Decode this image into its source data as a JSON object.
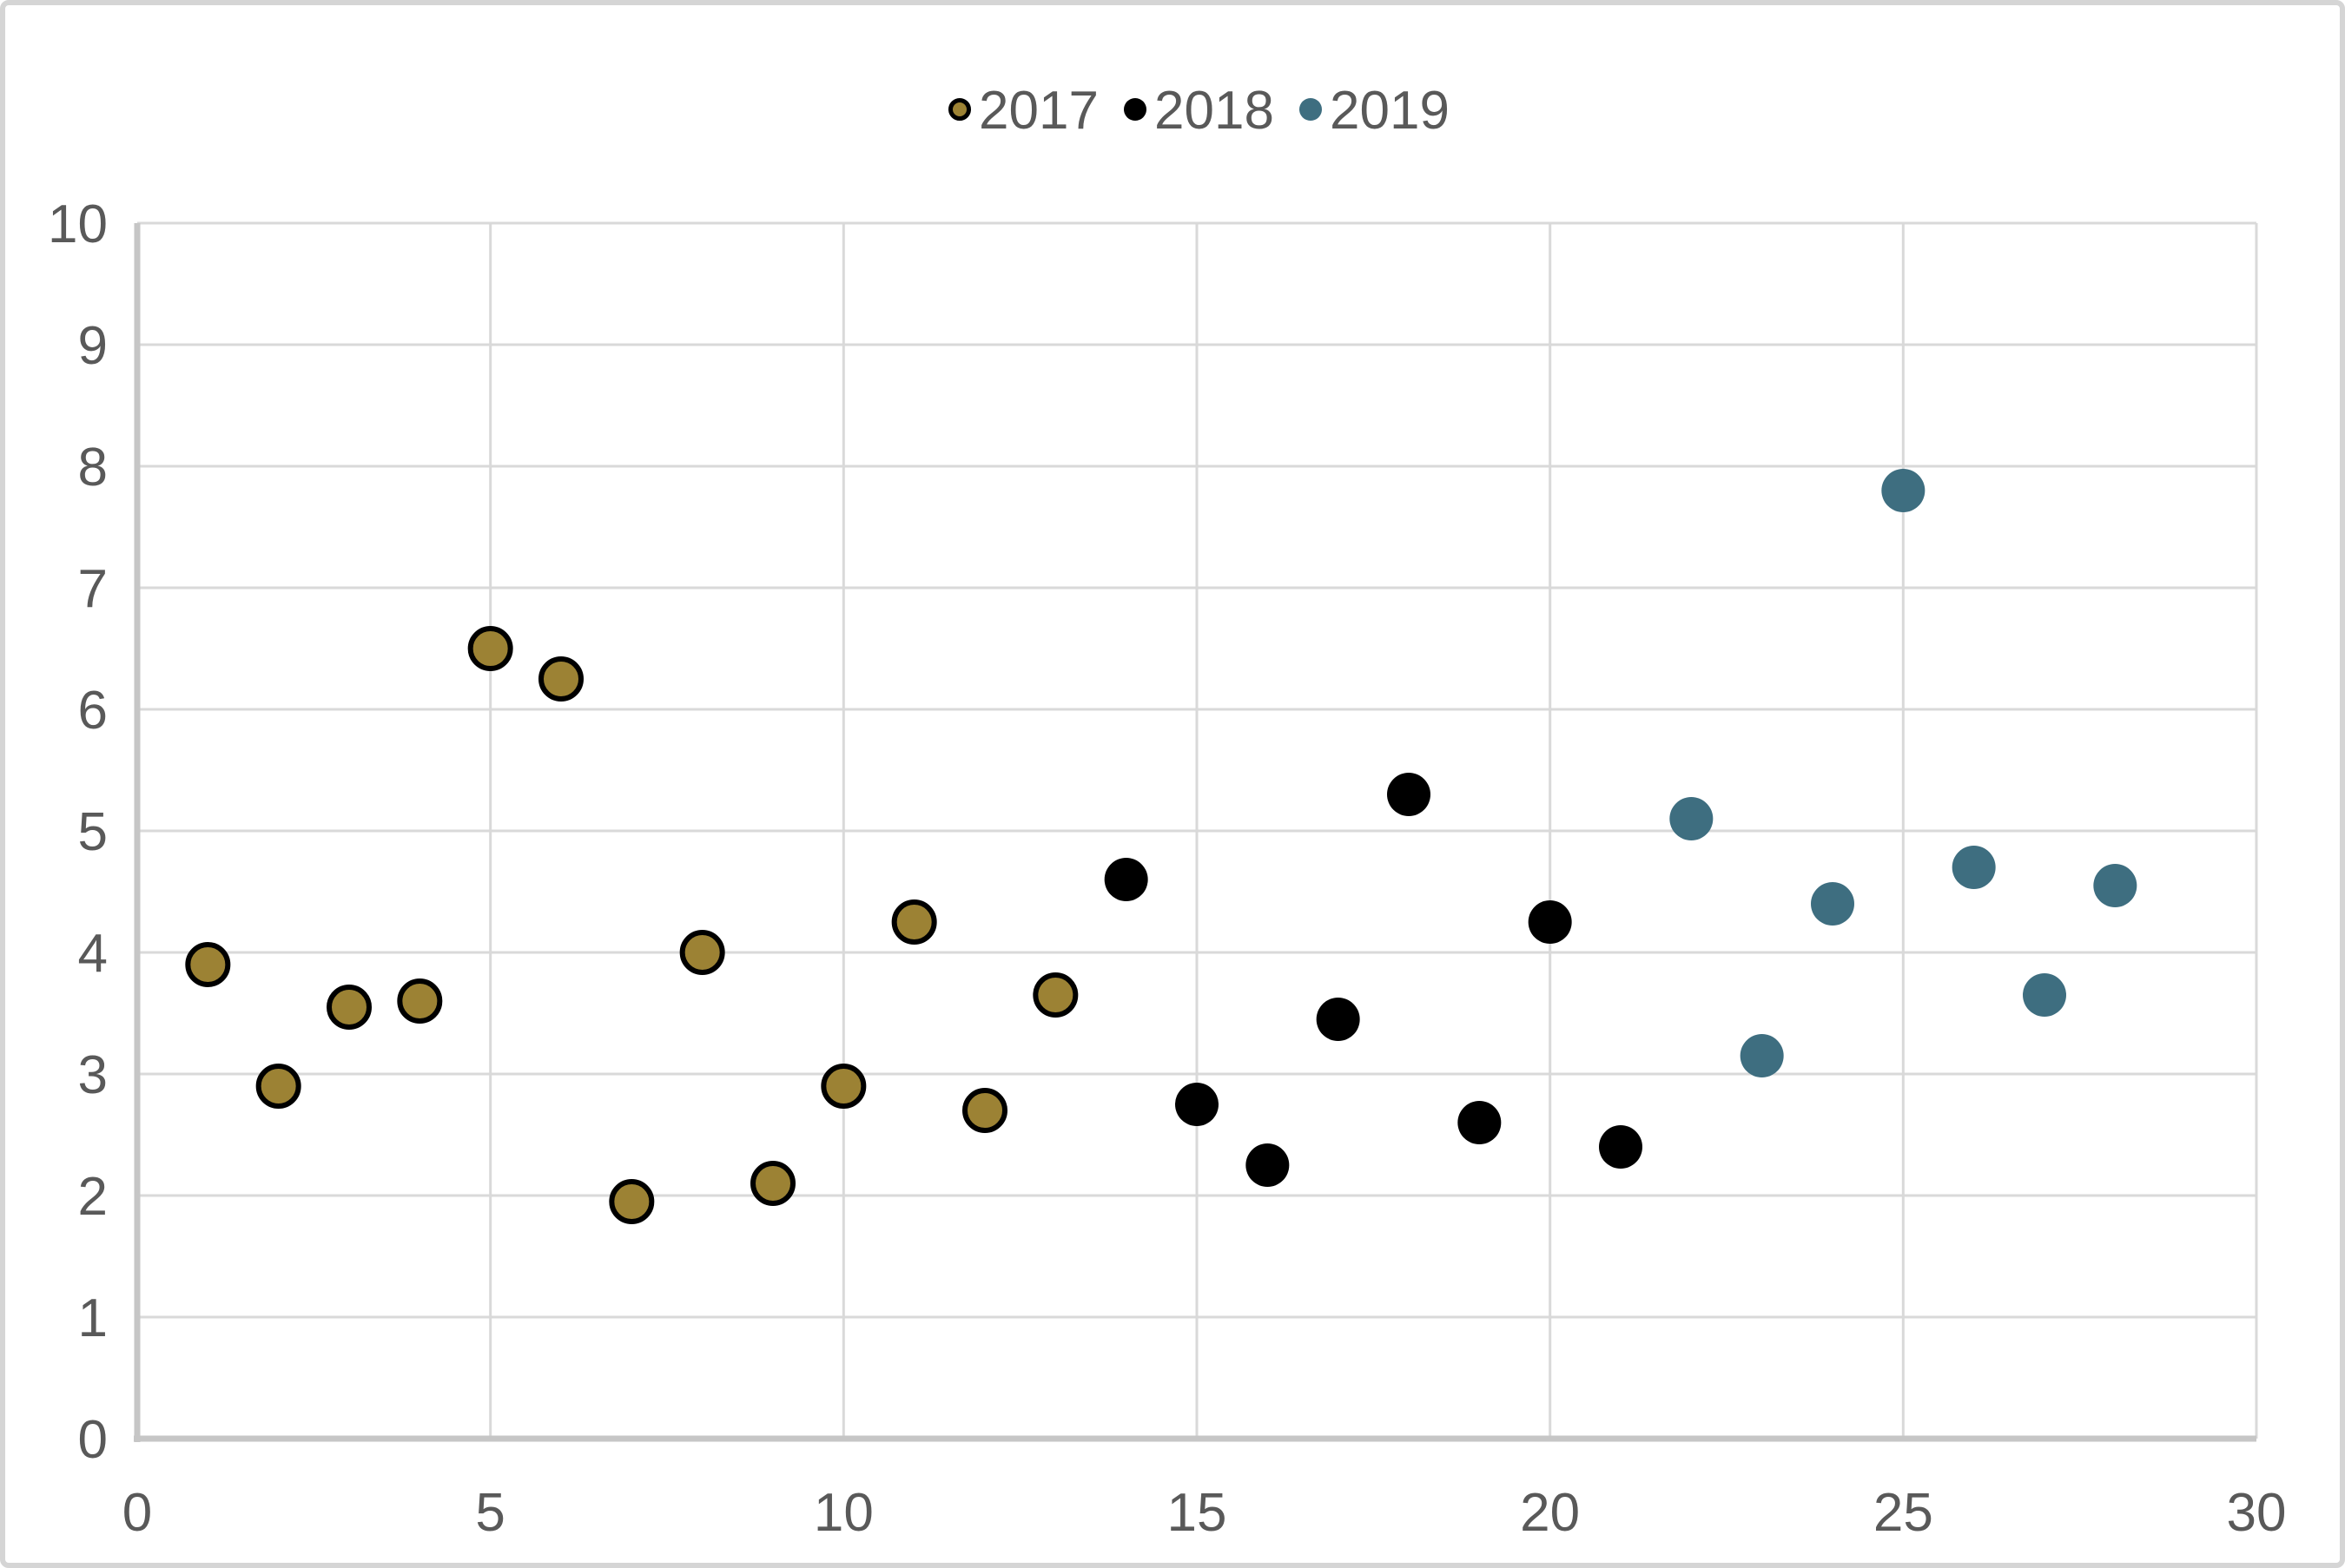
{
  "chart_data": {
    "type": "scatter",
    "title": "",
    "grid": true,
    "legend_position": "top-center",
    "x_axis": {
      "min": 0,
      "max": 30,
      "tick_step": 5,
      "tick_labels": [
        "0",
        "5",
        "10",
        "15",
        "20",
        "25",
        "30"
      ]
    },
    "y_axis": {
      "min": 0,
      "max": 10,
      "tick_step": 1,
      "tick_labels": [
        "0",
        "1",
        "2",
        "3",
        "4",
        "5",
        "6",
        "7",
        "8",
        "9",
        "10"
      ]
    },
    "series": [
      {
        "name": "2017",
        "marker_color": "#9C8234",
        "marker_outline": "#000000",
        "points": [
          [
            1,
            3.9
          ],
          [
            2,
            2.9
          ],
          [
            3,
            3.55
          ],
          [
            4,
            3.6
          ],
          [
            5,
            6.5
          ],
          [
            6,
            6.25
          ],
          [
            7,
            1.95
          ],
          [
            8,
            4.0
          ],
          [
            9,
            2.1
          ],
          [
            10,
            2.9
          ],
          [
            11,
            4.25
          ],
          [
            12,
            2.7
          ],
          [
            13,
            3.65
          ]
        ]
      },
      {
        "name": "2018",
        "marker_color": "#000000",
        "marker_outline": null,
        "points": [
          [
            14,
            4.6
          ],
          [
            15,
            2.75
          ],
          [
            16,
            2.25
          ],
          [
            17,
            3.45
          ],
          [
            18,
            5.3
          ],
          [
            19,
            2.6
          ],
          [
            20,
            4.25
          ],
          [
            21,
            2.4
          ]
        ]
      },
      {
        "name": "2019",
        "marker_color": "#3E6E80",
        "marker_outline": null,
        "points": [
          [
            22,
            5.1
          ],
          [
            23,
            3.15
          ],
          [
            24,
            4.4
          ],
          [
            25,
            7.8
          ],
          [
            26,
            4.7
          ],
          [
            27,
            3.65
          ],
          [
            28,
            4.55
          ]
        ]
      }
    ]
  },
  "style": {
    "background": "#FFFFFF",
    "gridline_color": "#D9D9D9",
    "axis_line_color": "#C6C6C6",
    "tick_label_color": "#595959",
    "frame_border_color": "#D5D5D5"
  }
}
